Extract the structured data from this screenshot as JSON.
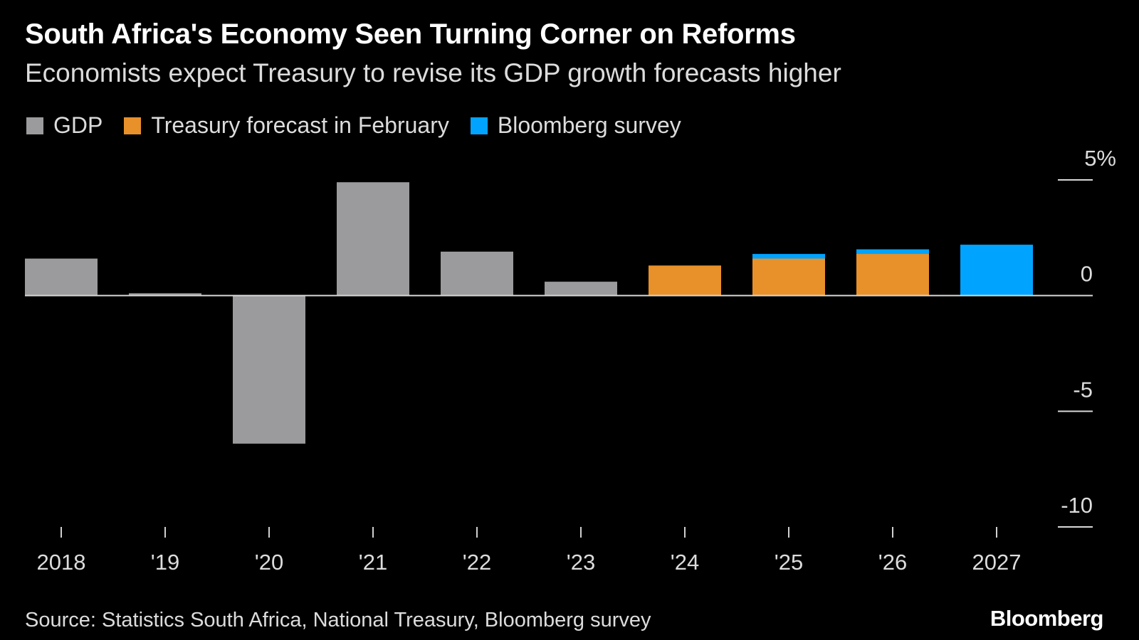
{
  "header": {
    "title": "South Africa's Economy Seen Turning Corner on Reforms",
    "subtitle": "Economists expect Treasury to revise its GDP growth forecasts higher"
  },
  "legend": [
    {
      "label": "GDP",
      "color": "#9b9a9c"
    },
    {
      "label": "Treasury forecast in February",
      "color": "#e8902a"
    },
    {
      "label": "Bloomberg survey",
      "color": "#00a4ff"
    }
  ],
  "footer": {
    "source": "Source: Statistics South Africa, National Treasury, Bloomberg survey",
    "brand": "Bloomberg"
  },
  "chart_data": {
    "type": "bar",
    "categories": [
      "2018",
      "'19",
      "'20",
      "'21",
      "'22",
      "'23",
      "'24",
      "'25",
      "'26",
      "2027"
    ],
    "series": [
      {
        "name": "GDP",
        "color": "#9b9a9c",
        "values": [
          1.6,
          0.1,
          -6.4,
          4.9,
          1.9,
          0.6,
          null,
          null,
          null,
          null
        ]
      },
      {
        "name": "Treasury forecast in February",
        "color": "#e8902a",
        "values": [
          null,
          null,
          null,
          null,
          null,
          null,
          1.3,
          1.6,
          1.8,
          null
        ]
      },
      {
        "name": "Bloomberg survey",
        "color": "#00a4ff",
        "values": [
          null,
          null,
          null,
          null,
          null,
          null,
          1.3,
          1.8,
          2.0,
          2.2
        ]
      }
    ],
    "y_ticks": [
      {
        "value": 5,
        "label": "5%"
      },
      {
        "value": 0,
        "label": "0"
      },
      {
        "value": -5,
        "label": "-5"
      },
      {
        "value": -10,
        "label": "-10"
      }
    ],
    "ylim": [
      -10,
      5
    ],
    "axis_position": "right",
    "grid": false
  }
}
